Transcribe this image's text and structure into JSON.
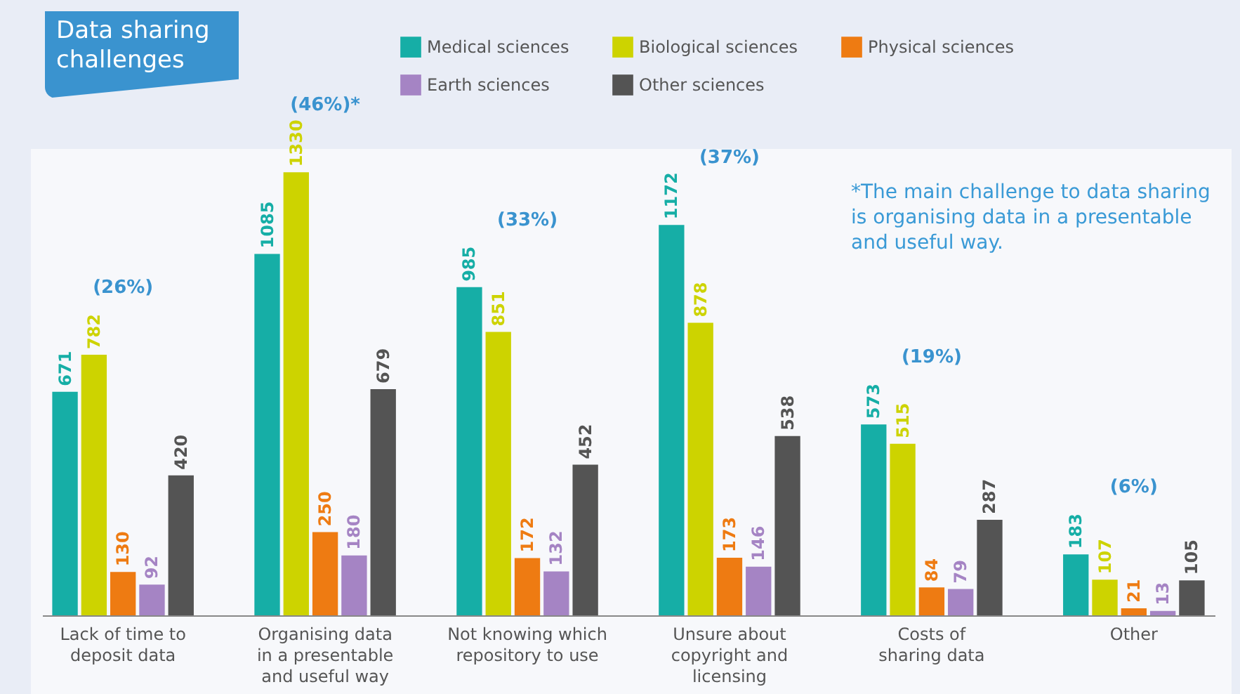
{
  "chart_data": {
    "type": "bar",
    "title": "Data sharing challenges",
    "categories": [
      "Lack of time to\ndeposit data",
      "Organising data\nin a presentable\nand useful way",
      "Not knowing which\nrepository to use",
      "Unsure about\ncopyright and\nlicensing",
      "Costs of\nsharing data",
      "Other"
    ],
    "series": [
      {
        "name": "Medical sciences",
        "color": "#16aea6",
        "values": [
          671,
          1085,
          985,
          1172,
          573,
          183
        ]
      },
      {
        "name": "Biological sciences",
        "color": "#cdd300",
        "values": [
          782,
          1330,
          851,
          878,
          515,
          107
        ]
      },
      {
        "name": "Physical sciences",
        "color": "#ee7b12",
        "values": [
          130,
          250,
          172,
          173,
          84,
          21
        ]
      },
      {
        "name": "Earth sciences",
        "color": "#a584c4",
        "values": [
          92,
          180,
          132,
          146,
          79,
          13
        ]
      },
      {
        "name": "Other sciences",
        "color": "#545454",
        "values": [
          420,
          679,
          452,
          538,
          287,
          105
        ]
      }
    ],
    "data_labels": true,
    "legend": "top",
    "grid": false,
    "annotations": [
      "(26%)",
      "(46%)*",
      "(33%)",
      "(37%)",
      "(19%)",
      "(6%)",
      "*The main challenge to data sharing is organising data in a presentable and useful way."
    ]
  }
}
